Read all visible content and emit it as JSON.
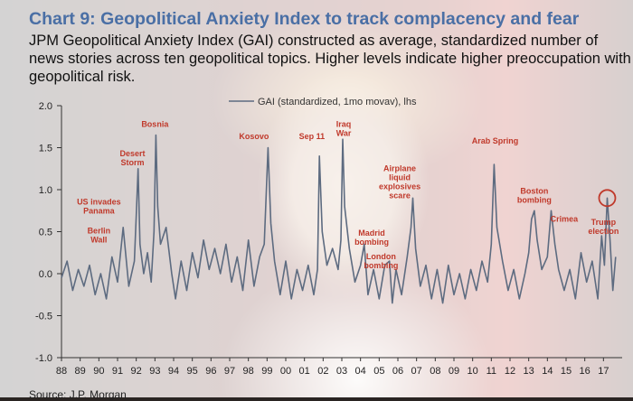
{
  "title": "Chart 9: Geopolitical Anxiety Index to track complacency and fear",
  "subtitle": "JPM Geopolitical Anxiety Index (GAI) constructed as average, standardized number of news stories across ten geopolitical topics. Higher levels indicate higher preoccupation with geopolitical risk.",
  "source": "Source: J.P. Morgan",
  "colors": {
    "title": "#4a6fa5",
    "series": "#5d6b80",
    "annotation": "#c0392b"
  },
  "chart_data": {
    "type": "line",
    "legend": "GAI (standardized, 1mo movav), lhs",
    "legend_position": "top-center",
    "ylim": [
      -1.0,
      2.0
    ],
    "yticks": [
      2.0,
      1.5,
      1.0,
      0.5,
      0.0,
      -0.5,
      -1.0
    ],
    "ytick_labels": [
      "2.0",
      "1.5",
      "1.0",
      "0.5",
      "0.0",
      "-0.5",
      "-1.0"
    ],
    "xlim": [
      1988,
      2018
    ],
    "xtick_labels": [
      "88",
      "89",
      "90",
      "91",
      "92",
      "93",
      "94",
      "95",
      "96",
      "97",
      "98",
      "99",
      "00",
      "01",
      "02",
      "03",
      "04",
      "05",
      "06",
      "07",
      "08",
      "09",
      "10",
      "11",
      "12",
      "13",
      "14",
      "15",
      "16",
      "17"
    ],
    "grid": false,
    "series": [
      {
        "values": [
          [
            1988.0,
            -0.05
          ],
          [
            1988.3,
            0.15
          ],
          [
            1988.6,
            -0.2
          ],
          [
            1988.9,
            0.05
          ],
          [
            1989.2,
            -0.15
          ],
          [
            1989.5,
            0.1
          ],
          [
            1989.8,
            -0.25
          ],
          [
            1990.1,
            0.0
          ],
          [
            1990.4,
            -0.3
          ],
          [
            1990.7,
            0.2
          ],
          [
            1991.0,
            -0.1
          ],
          [
            1991.3,
            0.55
          ],
          [
            1991.6,
            -0.15
          ],
          [
            1991.9,
            0.15
          ],
          [
            1992.0,
            0.7
          ],
          [
            1992.1,
            1.25
          ],
          [
            1992.2,
            0.35
          ],
          [
            1992.4,
            0.0
          ],
          [
            1992.6,
            0.25
          ],
          [
            1992.8,
            -0.1
          ],
          [
            1992.95,
            0.5
          ],
          [
            1993.05,
            1.65
          ],
          [
            1993.15,
            0.8
          ],
          [
            1993.3,
            0.35
          ],
          [
            1993.6,
            0.55
          ],
          [
            1993.9,
            0.0
          ],
          [
            1994.1,
            -0.3
          ],
          [
            1994.4,
            0.15
          ],
          [
            1994.7,
            -0.2
          ],
          [
            1995.0,
            0.25
          ],
          [
            1995.3,
            -0.05
          ],
          [
            1995.6,
            0.4
          ],
          [
            1995.9,
            0.05
          ],
          [
            1996.2,
            0.3
          ],
          [
            1996.5,
            0.0
          ],
          [
            1996.8,
            0.35
          ],
          [
            1997.1,
            -0.1
          ],
          [
            1997.4,
            0.2
          ],
          [
            1997.7,
            -0.2
          ],
          [
            1998.0,
            0.4
          ],
          [
            1998.3,
            -0.15
          ],
          [
            1998.6,
            0.2
          ],
          [
            1998.85,
            0.35
          ],
          [
            1999.05,
            1.5
          ],
          [
            1999.2,
            0.6
          ],
          [
            1999.4,
            0.15
          ],
          [
            1999.7,
            -0.25
          ],
          [
            2000.0,
            0.15
          ],
          [
            2000.3,
            -0.3
          ],
          [
            2000.6,
            0.05
          ],
          [
            2000.9,
            -0.2
          ],
          [
            2001.2,
            0.1
          ],
          [
            2001.5,
            -0.25
          ],
          [
            2001.7,
            0.05
          ],
          [
            2001.8,
            1.4
          ],
          [
            2001.95,
            0.5
          ],
          [
            2002.2,
            0.1
          ],
          [
            2002.5,
            0.3
          ],
          [
            2002.8,
            0.05
          ],
          [
            2002.95,
            0.4
          ],
          [
            2003.05,
            1.6
          ],
          [
            2003.15,
            0.8
          ],
          [
            2003.4,
            0.3
          ],
          [
            2003.7,
            -0.1
          ],
          [
            2004.0,
            0.1
          ],
          [
            2004.2,
            0.35
          ],
          [
            2004.4,
            -0.25
          ],
          [
            2004.7,
            0.05
          ],
          [
            2005.0,
            -0.3
          ],
          [
            2005.3,
            0.1
          ],
          [
            2005.55,
            0.15
          ],
          [
            2005.7,
            -0.35
          ],
          [
            2005.9,
            0.05
          ],
          [
            2006.2,
            -0.25
          ],
          [
            2006.5,
            0.2
          ],
          [
            2006.7,
            0.55
          ],
          [
            2006.8,
            0.9
          ],
          [
            2006.95,
            0.3
          ],
          [
            2007.2,
            -0.15
          ],
          [
            2007.5,
            0.1
          ],
          [
            2007.8,
            -0.3
          ],
          [
            2008.1,
            0.05
          ],
          [
            2008.4,
            -0.35
          ],
          [
            2008.7,
            0.1
          ],
          [
            2009.0,
            -0.25
          ],
          [
            2009.3,
            0.0
          ],
          [
            2009.6,
            -0.3
          ],
          [
            2009.9,
            0.05
          ],
          [
            2010.2,
            -0.2
          ],
          [
            2010.5,
            0.15
          ],
          [
            2010.8,
            -0.1
          ],
          [
            2011.0,
            0.35
          ],
          [
            2011.15,
            1.3
          ],
          [
            2011.3,
            0.55
          ],
          [
            2011.6,
            0.15
          ],
          [
            2011.9,
            -0.2
          ],
          [
            2012.2,
            0.05
          ],
          [
            2012.5,
            -0.3
          ],
          [
            2012.8,
            0.0
          ],
          [
            2013.0,
            0.25
          ],
          [
            2013.15,
            0.65
          ],
          [
            2013.3,
            0.75
          ],
          [
            2013.45,
            0.4
          ],
          [
            2013.7,
            0.05
          ],
          [
            2014.0,
            0.2
          ],
          [
            2014.2,
            0.75
          ],
          [
            2014.4,
            0.35
          ],
          [
            2014.6,
            0.05
          ],
          [
            2014.9,
            -0.2
          ],
          [
            2015.2,
            0.05
          ],
          [
            2015.5,
            -0.3
          ],
          [
            2015.8,
            0.25
          ],
          [
            2016.1,
            -0.1
          ],
          [
            2016.4,
            0.15
          ],
          [
            2016.7,
            -0.3
          ],
          [
            2016.9,
            0.45
          ],
          [
            2017.05,
            0.1
          ],
          [
            2017.2,
            0.9
          ],
          [
            2017.35,
            0.4
          ],
          [
            2017.5,
            -0.2
          ],
          [
            2017.65,
            0.2
          ]
        ]
      }
    ],
    "annotations": [
      {
        "lines": [
          "US invades",
          "Panama"
        ],
        "x": 1990.0,
        "y": 0.82
      },
      {
        "lines": [
          "Berlin",
          "Wall"
        ],
        "x": 1990.0,
        "y": 0.48
      },
      {
        "lines": [
          "Desert",
          "Storm"
        ],
        "x": 1991.8,
        "y": 1.4
      },
      {
        "lines": [
          "Bosnia"
        ],
        "x": 1993.0,
        "y": 1.75
      },
      {
        "lines": [
          "Kosovo"
        ],
        "x": 1998.3,
        "y": 1.6
      },
      {
        "lines": [
          "Sep 11"
        ],
        "x": 2001.4,
        "y": 1.6
      },
      {
        "lines": [
          "Iraq",
          "War"
        ],
        "x": 2003.1,
        "y": 1.75
      },
      {
        "lines": [
          "Airplane",
          "liquid",
          "explosives",
          "scare"
        ],
        "x": 2006.1,
        "y": 1.22
      },
      {
        "lines": [
          "Madrid",
          "bombing"
        ],
        "x": 2004.6,
        "y": 0.45
      },
      {
        "lines": [
          "London",
          "bombing"
        ],
        "x": 2005.1,
        "y": 0.17
      },
      {
        "lines": [
          "Arab Spring"
        ],
        "x": 2011.2,
        "y": 1.55
      },
      {
        "lines": [
          "Boston",
          "bombing"
        ],
        "x": 2013.3,
        "y": 0.95
      },
      {
        "lines": [
          "Crimea"
        ],
        "x": 2014.9,
        "y": 0.62
      },
      {
        "lines": [
          "Trump",
          "election"
        ],
        "x": 2017.0,
        "y": 0.58
      }
    ],
    "highlight": {
      "label": "Trump election",
      "x": 2017.2,
      "y": 0.9
    }
  }
}
